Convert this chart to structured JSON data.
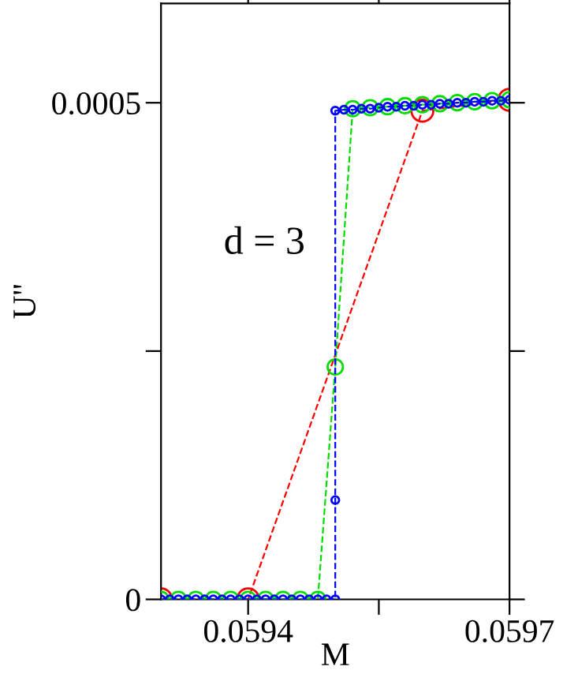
{
  "chart_data": {
    "type": "line",
    "xlabel": "M",
    "ylabel": "U''",
    "annotations": [
      "d = 3"
    ],
    "xlim": [
      0.0593,
      0.0597
    ],
    "xticks": [
      0.0594,
      {
        "value": 0.05955,
        "label": null
      },
      0.0597
    ],
    "ylim": [
      0,
      0.0006
    ],
    "yticks": [
      0,
      {
        "value": 0.00025,
        "label": null
      },
      0.0005
    ],
    "marker": "circle",
    "line_style": "dashed",
    "grid": false,
    "legend": false,
    "series": [
      {
        "color": "#ff0000",
        "x": [
          0.0593,
          0.0594,
          0.0596,
          0.0597
        ],
        "values": [
          0,
          0,
          0.000492,
          0.000503
        ]
      },
      {
        "color": "#00dd00",
        "x": [
          0.0593,
          0.05932,
          0.05934,
          0.05936,
          0.05938,
          0.0594,
          0.05942,
          0.05944,
          0.05946,
          0.05948,
          0.0595,
          0.05952,
          0.05954,
          0.05956,
          0.05958,
          0.0596,
          0.05962,
          0.05964,
          0.05966,
          0.05968,
          0.0597
        ],
        "values": [
          0,
          0,
          0,
          0,
          0,
          0,
          0,
          0,
          0,
          0,
          0.000234,
          0.000494,
          0.000495,
          0.000496,
          0.000497,
          0.000498,
          0.000499,
          0.0005,
          0.000501,
          0.000502,
          0.000503
        ]
      },
      {
        "color": "#0000ff",
        "x": [
          0.0593,
          0.05931,
          0.05932,
          0.05933,
          0.05934,
          0.05935,
          0.05936,
          0.05937,
          0.05938,
          0.05939,
          0.0594,
          0.05941,
          0.05942,
          0.05943,
          0.05944,
          0.05945,
          0.05946,
          0.05947,
          0.05948,
          0.05949,
          0.0595,
          0.0595,
          0.0595,
          0.05951,
          0.05952,
          0.05953,
          0.05954,
          0.05955,
          0.05956,
          0.05957,
          0.05958,
          0.05959,
          0.0596,
          0.05961,
          0.05962,
          0.05963,
          0.05964,
          0.05965,
          0.05966,
          0.05967,
          0.05968,
          0.05969,
          0.0597
        ],
        "values": [
          0,
          0,
          0,
          0,
          0,
          0,
          0,
          0,
          0,
          0,
          0,
          0,
          0,
          0,
          0,
          0,
          0,
          0,
          0,
          0,
          0,
          0.0001,
          0.000492,
          0.000493,
          0.000493,
          0.000494,
          0.000494,
          0.000495,
          0.000496,
          0.000496,
          0.000497,
          0.000497,
          0.000498,
          0.000498,
          0.000499,
          0.000499,
          0.0005,
          0.0005,
          0.000501,
          0.000501,
          0.000502,
          0.000502,
          0.000503
        ]
      }
    ]
  }
}
